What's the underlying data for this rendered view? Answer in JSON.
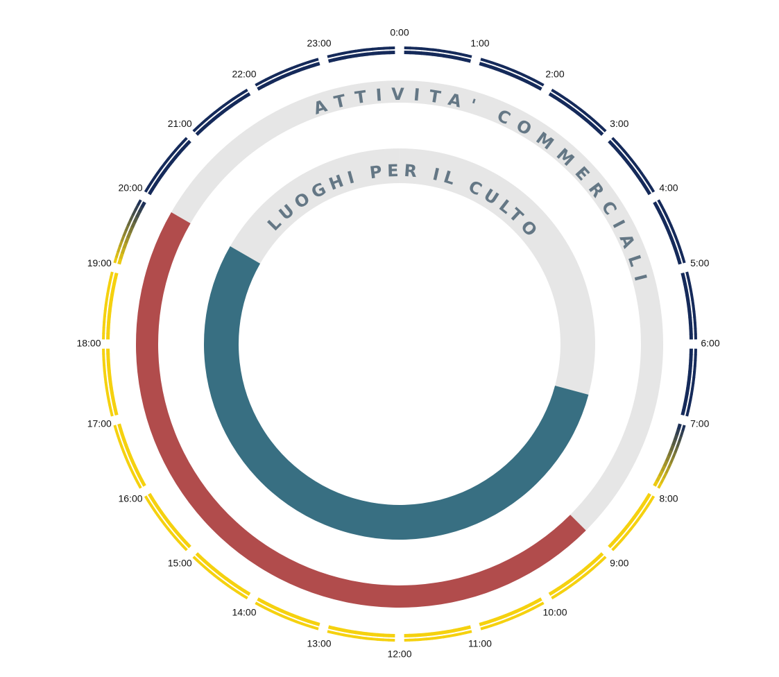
{
  "chart_data": {
    "type": "radial-timeline",
    "colors": {
      "night": "#152a5a",
      "day": "#f5d10f",
      "track": "#e6e6e6",
      "commercial": "#b14c4c",
      "worship": "#386f82"
    },
    "hours": [
      "0:00",
      "1:00",
      "2:00",
      "3:00",
      "4:00",
      "5:00",
      "6:00",
      "7:00",
      "8:00",
      "9:00",
      "10:00",
      "11:00",
      "12:00",
      "13:00",
      "14:00",
      "15:00",
      "16:00",
      "17:00",
      "18:00",
      "19:00",
      "20:00",
      "21:00",
      "22:00",
      "23:00"
    ],
    "daylight": {
      "dawn_start": 7,
      "day_start": 8,
      "dusk_start": 19,
      "night_start": 20
    },
    "rings": [
      {
        "label": "ATTIVITA' COMMERCIALI",
        "start": 9,
        "end": 20
      },
      {
        "label": "LUOGHI PER IL CULTO",
        "start": 7,
        "end": 20
      }
    ]
  }
}
